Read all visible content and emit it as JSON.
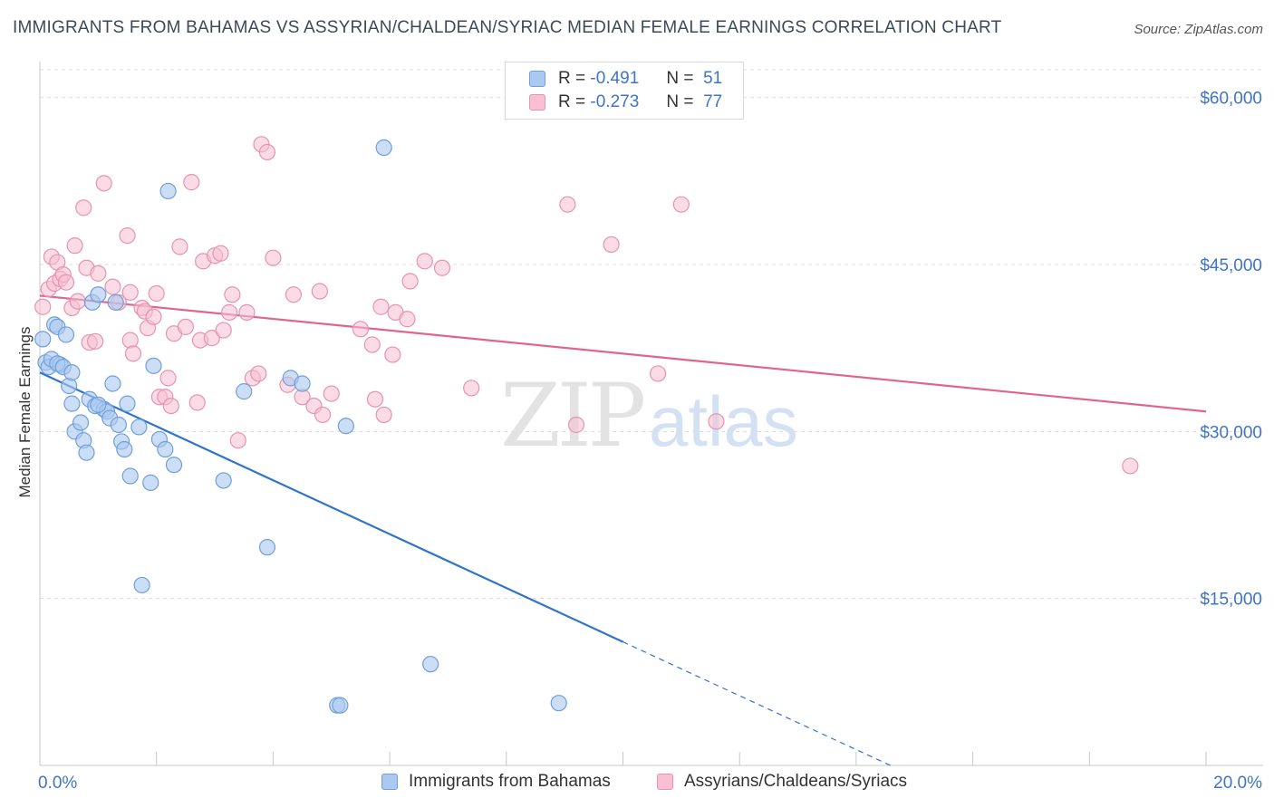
{
  "title": "IMMIGRANTS FROM BAHAMAS VS ASSYRIAN/CHALDEAN/SYRIAC MEDIAN FEMALE EARNINGS CORRELATION CHART",
  "source": "Source: ZipAtlas.com",
  "watermark": {
    "zip": "ZIP",
    "atlas": "atlas"
  },
  "legend": {
    "rows": [
      {
        "r_label": "R =",
        "r_value": "-0.491",
        "n_label": "N =",
        "n_value": "51"
      },
      {
        "r_label": "R =",
        "r_value": "-0.273",
        "n_label": "N =",
        "n_value": "77"
      }
    ]
  },
  "colors": {
    "blue_fill": "#aac8f0",
    "blue_stroke": "#6f9fdb",
    "blue_line": "#2f73d0",
    "pink_fill": "#f8c0d2",
    "pink_stroke": "#e893ae",
    "pink_line": "#e0648f",
    "grid": "#dcdcdc",
    "tick_text": "#3f74c6"
  },
  "chart_data": {
    "type": "scatter",
    "title": "IMMIGRANTS FROM BAHAMAS VS ASSYRIAN/CHALDEAN/SYRIAC MEDIAN FEMALE EARNINGS CORRELATION CHART",
    "xlabel": "",
    "ylabel": "Median Female Earnings",
    "xlim": [
      0,
      20
    ],
    "ylim": [
      0,
      62500
    ],
    "x_tick_labels": [
      "0.0%",
      "20.0%"
    ],
    "y_ticks": [
      15000,
      30000,
      45000,
      60000
    ],
    "y_tick_labels": [
      "$15,000",
      "$30,000",
      "$45,000",
      "$60,000"
    ],
    "series": [
      {
        "name": "Immigrants from Bahamas",
        "color": "blue",
        "R": -0.491,
        "N": 51,
        "trend": {
          "x0": 0,
          "y0": 35300,
          "x1": 10,
          "y1": 11100,
          "dashed_to_x": 14.6
        },
        "points": [
          [
            0.05,
            38300
          ],
          [
            0.1,
            36200
          ],
          [
            0.15,
            35800
          ],
          [
            0.2,
            36500
          ],
          [
            0.25,
            39600
          ],
          [
            0.3,
            39400
          ],
          [
            0.35,
            36000
          ],
          [
            0.3,
            36100
          ],
          [
            0.4,
            35800
          ],
          [
            0.45,
            38700
          ],
          [
            0.5,
            34100
          ],
          [
            0.55,
            35300
          ],
          [
            0.55,
            32500
          ],
          [
            0.6,
            30000
          ],
          [
            0.7,
            30800
          ],
          [
            0.75,
            29200
          ],
          [
            0.8,
            28100
          ],
          [
            0.85,
            32900
          ],
          [
            0.9,
            41600
          ],
          [
            0.95,
            32300
          ],
          [
            1.0,
            42300
          ],
          [
            1.1,
            32000
          ],
          [
            1.15,
            31800
          ],
          [
            1.2,
            31200
          ],
          [
            1.0,
            32400
          ],
          [
            1.25,
            34300
          ],
          [
            1.3,
            41600
          ],
          [
            1.4,
            29100
          ],
          [
            1.45,
            28400
          ],
          [
            1.5,
            32500
          ],
          [
            1.55,
            26000
          ],
          [
            1.35,
            30600
          ],
          [
            1.7,
            30400
          ],
          [
            1.75,
            16200
          ],
          [
            1.9,
            25400
          ],
          [
            1.95,
            35900
          ],
          [
            2.05,
            29300
          ],
          [
            2.15,
            28400
          ],
          [
            2.2,
            51600
          ],
          [
            2.3,
            27000
          ],
          [
            3.15,
            25600
          ],
          [
            3.5,
            33600
          ],
          [
            3.9,
            19600
          ],
          [
            4.3,
            34800
          ],
          [
            4.5,
            34300
          ],
          [
            5.1,
            5400
          ],
          [
            5.15,
            5400
          ],
          [
            5.25,
            30500
          ],
          [
            5.9,
            55500
          ],
          [
            6.7,
            9100
          ],
          [
            8.9,
            5600
          ]
        ]
      },
      {
        "name": "Assyrians/Chaldeans/Syriacs",
        "color": "pink",
        "R": -0.273,
        "N": 77,
        "trend": {
          "x0": 0,
          "y0": 42200,
          "x1": 20,
          "y1": 31800
        },
        "points": [
          [
            0.05,
            41200
          ],
          [
            0.15,
            42800
          ],
          [
            0.2,
            45700
          ],
          [
            0.25,
            43300
          ],
          [
            0.3,
            45200
          ],
          [
            0.35,
            43700
          ],
          [
            0.4,
            44100
          ],
          [
            0.45,
            43400
          ],
          [
            0.6,
            46700
          ],
          [
            0.55,
            41100
          ],
          [
            0.65,
            41700
          ],
          [
            0.75,
            50100
          ],
          [
            0.8,
            44700
          ],
          [
            0.85,
            38000
          ],
          [
            0.95,
            38100
          ],
          [
            1.0,
            44200
          ],
          [
            1.1,
            52300
          ],
          [
            1.25,
            43000
          ],
          [
            1.35,
            41600
          ],
          [
            1.5,
            47600
          ],
          [
            1.55,
            42500
          ],
          [
            1.55,
            38200
          ],
          [
            1.6,
            37000
          ],
          [
            1.75,
            41100
          ],
          [
            1.8,
            40800
          ],
          [
            1.85,
            39300
          ],
          [
            1.95,
            40300
          ],
          [
            2.0,
            42400
          ],
          [
            2.05,
            33100
          ],
          [
            2.15,
            33100
          ],
          [
            2.25,
            32300
          ],
          [
            2.2,
            34800
          ],
          [
            2.3,
            38800
          ],
          [
            2.4,
            46600
          ],
          [
            2.5,
            39400
          ],
          [
            2.6,
            52400
          ],
          [
            2.7,
            32600
          ],
          [
            2.75,
            38200
          ],
          [
            2.8,
            45300
          ],
          [
            2.95,
            38400
          ],
          [
            3.0,
            45800
          ],
          [
            3.1,
            46000
          ],
          [
            3.15,
            39100
          ],
          [
            3.25,
            40700
          ],
          [
            3.3,
            42300
          ],
          [
            3.4,
            29200
          ],
          [
            3.55,
            40700
          ],
          [
            3.65,
            34800
          ],
          [
            3.75,
            35200
          ],
          [
            3.8,
            55800
          ],
          [
            3.9,
            55100
          ],
          [
            4.0,
            45600
          ],
          [
            4.25,
            34200
          ],
          [
            4.35,
            42300
          ],
          [
            4.5,
            33100
          ],
          [
            4.7,
            32300
          ],
          [
            4.8,
            42600
          ],
          [
            4.85,
            31500
          ],
          [
            5.0,
            33400
          ],
          [
            5.5,
            39200
          ],
          [
            5.7,
            37800
          ],
          [
            5.75,
            32900
          ],
          [
            5.85,
            41200
          ],
          [
            5.9,
            31500
          ],
          [
            6.1,
            40700
          ],
          [
            6.05,
            36900
          ],
          [
            6.3,
            40100
          ],
          [
            6.35,
            43500
          ],
          [
            6.6,
            45300
          ],
          [
            6.9,
            44700
          ],
          [
            7.4,
            33900
          ],
          [
            9.05,
            50400
          ],
          [
            9.2,
            30600
          ],
          [
            9.8,
            46800
          ],
          [
            10.6,
            35200
          ],
          [
            11.0,
            50400
          ],
          [
            11.6,
            30900
          ],
          [
            18.7,
            26900
          ]
        ]
      }
    ]
  },
  "bottom_legend": [
    {
      "label": "Immigrants from Bahamas"
    },
    {
      "label": "Assyrians/Chaldeans/Syriacs"
    }
  ]
}
